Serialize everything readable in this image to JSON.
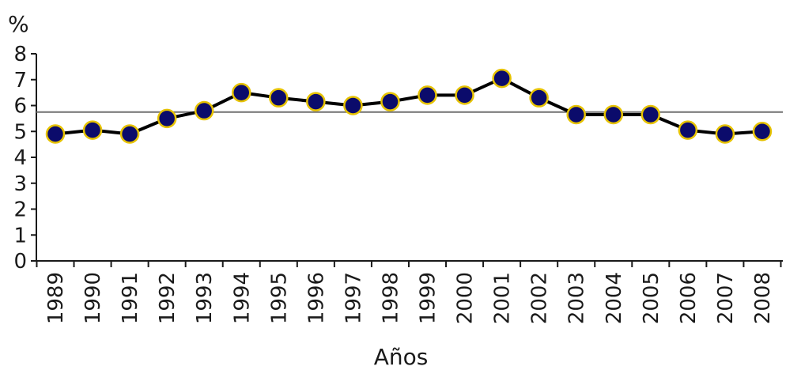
{
  "chart_data": {
    "type": "line",
    "ylabel": "%",
    "xlabel": "Años",
    "ylim": [
      0,
      8
    ],
    "yticks": [
      0,
      1,
      2,
      3,
      4,
      5,
      6,
      7,
      8
    ],
    "x_tick_labels": [
      "1989",
      "1990",
      "1991",
      "1992",
      "1993",
      "1994",
      "1995",
      "1996",
      "1997",
      "1998",
      "1999",
      "2000",
      "2001",
      "2002",
      "2003",
      "2004",
      "2005",
      "2006",
      "2007",
      "2008"
    ],
    "x": [
      1989,
      1990,
      1991,
      1992,
      1993,
      1994,
      1995,
      1996,
      1997,
      1998,
      1999,
      2000,
      2001,
      2002,
      2003,
      2004,
      2005,
      2006,
      2007,
      2008
    ],
    "series": [
      {
        "values": [
          4.9,
          5.05,
          4.9,
          5.5,
          5.8,
          6.5,
          6.3,
          6.15,
          6.0,
          6.15,
          6.4,
          6.4,
          7.05,
          6.3,
          5.65,
          5.65,
          5.65,
          5.05,
          4.9,
          5.0
        ]
      }
    ],
    "reference_line": 5.75,
    "grid": false,
    "colors": {
      "line": "#000000",
      "marker_fill": "#0b0b6b",
      "marker_edge": "#e6c200",
      "reference_line": "#707070"
    }
  }
}
